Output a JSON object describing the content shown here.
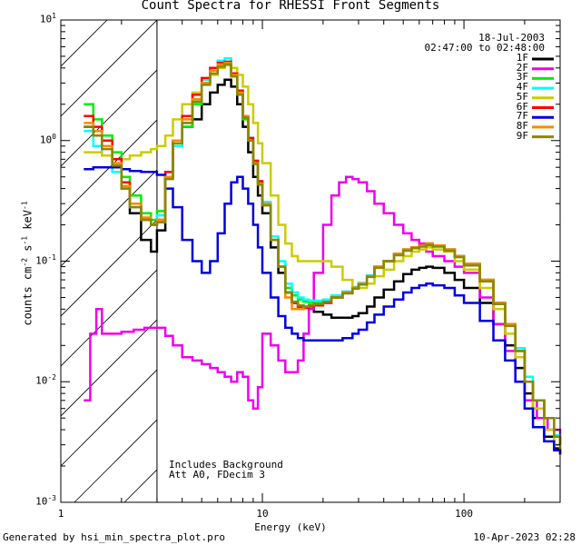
{
  "chart_data": {
    "type": "line",
    "title": "Count Spectra for RHESSI Front Segments",
    "xlabel": "Energy (keV)",
    "ylabel_parts": [
      "counts cm",
      "-2",
      " s",
      "-1",
      " keV",
      "-1"
    ],
    "xscale": "log",
    "yscale": "log",
    "xlim": [
      1,
      300
    ],
    "ylim": [
      0.001,
      10
    ],
    "x_ticks": [
      {
        "v": 1,
        "t": "1"
      },
      {
        "v": 10,
        "t": "10"
      },
      {
        "v": 100,
        "t": "100"
      }
    ],
    "y_ticks": [
      {
        "v": 0.001,
        "base": "10",
        "exp": "-3"
      },
      {
        "v": 0.01,
        "base": "10",
        "exp": "-2"
      },
      {
        "v": 0.1,
        "base": "10",
        "exp": "-1"
      },
      {
        "v": 1,
        "base": "10",
        "exp": "0"
      },
      {
        "v": 10,
        "base": "10",
        "exp": "1"
      }
    ],
    "shaded_region_x": [
      1,
      3
    ],
    "date": "18-Jul-2003",
    "time_range": "02:47:00 to 02:48:00",
    "annotations": [
      "Includes Background",
      "Att A0, FDecim 3"
    ],
    "series": [
      {
        "name": "1F",
        "color": "#000000",
        "x": [
          1.3,
          1.45,
          1.6,
          1.8,
          2.0,
          2.2,
          2.5,
          2.8,
          3.0,
          3.3,
          3.6,
          4.0,
          4.5,
          5.0,
          5.5,
          6.0,
          6.5,
          7.0,
          7.5,
          8.0,
          8.5,
          9.0,
          9.5,
          10,
          11,
          12,
          13,
          14,
          15,
          16,
          17,
          18,
          20,
          22,
          25,
          28,
          30,
          33,
          36,
          40,
          45,
          50,
          55,
          60,
          65,
          70,
          80,
          90,
          100,
          120,
          140,
          160,
          180,
          200,
          220,
          250,
          280,
          300
        ],
        "y": [
          1.3,
          1.2,
          0.9,
          0.6,
          0.4,
          0.25,
          0.15,
          0.12,
          0.18,
          0.5,
          1.0,
          1.3,
          1.5,
          2.0,
          2.5,
          2.9,
          3.2,
          2.8,
          2.0,
          1.3,
          0.8,
          0.5,
          0.35,
          0.25,
          0.13,
          0.08,
          0.055,
          0.045,
          0.042,
          0.041,
          0.04,
          0.038,
          0.036,
          0.034,
          0.034,
          0.035,
          0.037,
          0.042,
          0.05,
          0.058,
          0.068,
          0.078,
          0.085,
          0.088,
          0.09,
          0.088,
          0.08,
          0.07,
          0.06,
          0.045,
          0.03,
          0.02,
          0.013,
          0.008,
          0.005,
          0.0035,
          0.0028,
          0.0025
        ]
      },
      {
        "name": "2F",
        "color": "#ee00ee",
        "x": [
          1.3,
          1.4,
          1.5,
          1.6,
          1.8,
          2.0,
          2.3,
          2.6,
          3.0,
          3.3,
          3.6,
          4.0,
          4.5,
          5.0,
          5.5,
          6.0,
          6.5,
          7.0,
          7.5,
          8.0,
          8.5,
          9.0,
          9.5,
          10,
          11,
          12,
          13,
          14,
          15,
          16,
          17,
          18,
          20,
          22,
          24,
          26,
          28,
          30,
          33,
          36,
          40,
          45,
          50,
          55,
          60,
          65,
          70,
          80,
          90,
          100,
          120,
          140,
          160,
          180,
          200,
          230,
          260,
          300
        ],
        "y": [
          0.007,
          0.025,
          0.04,
          0.025,
          0.025,
          0.026,
          0.027,
          0.028,
          0.028,
          0.024,
          0.02,
          0.016,
          0.015,
          0.014,
          0.013,
          0.012,
          0.011,
          0.01,
          0.012,
          0.011,
          0.007,
          0.006,
          0.009,
          0.025,
          0.02,
          0.015,
          0.012,
          0.012,
          0.015,
          0.025,
          0.04,
          0.08,
          0.2,
          0.35,
          0.45,
          0.5,
          0.48,
          0.45,
          0.38,
          0.3,
          0.25,
          0.2,
          0.17,
          0.15,
          0.14,
          0.12,
          0.11,
          0.1,
          0.09,
          0.08,
          0.05,
          0.03,
          0.018,
          0.01,
          0.007,
          0.005,
          0.004,
          0.0035
        ]
      },
      {
        "name": "3F",
        "color": "#00ee00",
        "x": [
          1.3,
          1.45,
          1.6,
          1.8,
          2.0,
          2.2,
          2.5,
          2.8,
          3.0,
          3.3,
          3.6,
          4.0,
          4.5,
          5.0,
          5.5,
          6.0,
          6.5,
          7.0,
          7.5,
          8.0,
          8.5,
          9.0,
          9.5,
          10,
          11,
          12,
          13,
          14,
          15,
          16,
          17,
          18,
          20,
          22,
          25,
          28,
          30,
          33,
          36,
          40,
          45,
          50,
          55,
          60,
          65,
          70,
          80,
          90,
          100,
          120,
          140,
          160,
          180,
          200,
          220,
          250,
          280,
          300
        ],
        "y": [
          2.0,
          1.5,
          1.1,
          0.8,
          0.5,
          0.35,
          0.25,
          0.22,
          0.26,
          0.5,
          0.9,
          1.3,
          2.0,
          3.0,
          3.8,
          4.3,
          4.5,
          3.5,
          2.5,
          1.5,
          1.0,
          0.65,
          0.45,
          0.3,
          0.15,
          0.09,
          0.06,
          0.052,
          0.048,
          0.046,
          0.045,
          0.045,
          0.047,
          0.05,
          0.055,
          0.06,
          0.065,
          0.075,
          0.09,
          0.1,
          0.115,
          0.125,
          0.13,
          0.135,
          0.14,
          0.135,
          0.125,
          0.11,
          0.095,
          0.07,
          0.045,
          0.03,
          0.018,
          0.01,
          0.007,
          0.005,
          0.0035,
          0.003
        ]
      },
      {
        "name": "4F",
        "color": "#00ffff",
        "x": [
          1.3,
          1.45,
          1.6,
          1.8,
          2.0,
          2.2,
          2.5,
          2.8,
          3.0,
          3.3,
          3.6,
          4.0,
          4.5,
          5.0,
          5.5,
          6.0,
          6.5,
          7.0,
          7.5,
          8.0,
          8.5,
          9.0,
          9.5,
          10,
          11,
          12,
          13,
          14,
          15,
          16,
          17,
          18,
          20,
          22,
          25,
          28,
          30,
          33,
          36,
          40,
          45,
          50,
          55,
          60,
          65,
          70,
          80,
          90,
          100,
          120,
          140,
          160,
          180,
          200,
          220,
          250,
          280,
          300
        ],
        "y": [
          1.2,
          0.9,
          0.75,
          0.55,
          0.4,
          0.28,
          0.22,
          0.2,
          0.24,
          0.5,
          0.9,
          1.4,
          2.1,
          3.2,
          4.0,
          4.6,
          4.8,
          3.6,
          2.6,
          1.6,
          1.05,
          0.68,
          0.46,
          0.31,
          0.16,
          0.1,
          0.065,
          0.055,
          0.05,
          0.048,
          0.047,
          0.047,
          0.048,
          0.052,
          0.056,
          0.061,
          0.066,
          0.076,
          0.09,
          0.1,
          0.115,
          0.125,
          0.13,
          0.135,
          0.14,
          0.135,
          0.125,
          0.11,
          0.095,
          0.07,
          0.045,
          0.03,
          0.019,
          0.011,
          0.007,
          0.005,
          0.0036,
          0.003
        ]
      },
      {
        "name": "5F",
        "color": "#cccc00",
        "x": [
          1.3,
          1.45,
          1.6,
          1.8,
          2.0,
          2.2,
          2.5,
          2.8,
          3.0,
          3.3,
          3.6,
          4.0,
          4.5,
          5.0,
          5.5,
          6.0,
          6.5,
          7.0,
          7.5,
          8.0,
          8.5,
          9.0,
          9.5,
          10,
          11,
          12,
          13,
          14,
          15,
          16,
          17,
          18,
          20,
          22,
          25,
          28,
          30,
          33,
          36,
          40,
          45,
          50,
          55,
          60,
          65,
          70,
          80,
          90,
          100,
          120,
          140,
          160,
          180,
          200,
          220,
          250,
          280,
          300
        ],
        "y": [
          0.8,
          0.8,
          0.75,
          0.7,
          0.7,
          0.75,
          0.8,
          0.85,
          0.9,
          1.1,
          1.5,
          2.0,
          2.5,
          3.0,
          3.5,
          4.0,
          4.2,
          4.0,
          3.5,
          2.8,
          2.0,
          1.4,
          0.95,
          0.65,
          0.35,
          0.2,
          0.14,
          0.11,
          0.1,
          0.1,
          0.1,
          0.1,
          0.1,
          0.09,
          0.07,
          0.06,
          0.06,
          0.065,
          0.075,
          0.085,
          0.1,
          0.11,
          0.12,
          0.125,
          0.13,
          0.125,
          0.12,
          0.1,
          0.085,
          0.06,
          0.04,
          0.025,
          0.016,
          0.01,
          0.006,
          0.004,
          0.003,
          0.0025
        ]
      },
      {
        "name": "6F",
        "color": "#ff0000",
        "x": [
          1.3,
          1.45,
          1.6,
          1.8,
          2.0,
          2.2,
          2.5,
          2.8,
          3.0,
          3.3,
          3.6,
          4.0,
          4.5,
          5.0,
          5.5,
          6.0,
          6.5,
          7.0,
          7.5,
          8.0,
          8.5,
          9.0,
          9.5,
          10,
          11,
          12,
          13,
          14,
          15,
          16,
          17,
          18,
          20,
          22,
          25,
          28,
          30,
          33,
          36,
          40,
          45,
          50,
          55,
          60,
          65,
          70,
          80,
          90,
          100,
          120,
          140,
          160,
          180,
          200,
          220,
          250,
          280,
          300
        ],
        "y": [
          1.6,
          1.3,
          1.0,
          0.7,
          0.45,
          0.3,
          0.22,
          0.2,
          0.22,
          0.55,
          1.0,
          1.6,
          2.4,
          3.3,
          4.0,
          4.4,
          4.5,
          3.6,
          2.6,
          1.6,
          1.05,
          0.68,
          0.46,
          0.3,
          0.15,
          0.09,
          0.055,
          0.045,
          0.042,
          0.041,
          0.042,
          0.043,
          0.045,
          0.05,
          0.055,
          0.06,
          0.065,
          0.075,
          0.09,
          0.1,
          0.115,
          0.125,
          0.13,
          0.135,
          0.14,
          0.135,
          0.125,
          0.11,
          0.095,
          0.07,
          0.045,
          0.03,
          0.018,
          0.01,
          0.007,
          0.005,
          0.0035,
          0.003
        ]
      },
      {
        "name": "7F",
        "color": "#0000dd",
        "x": [
          1.3,
          1.45,
          1.6,
          1.8,
          2.0,
          2.2,
          2.5,
          2.8,
          3.0,
          3.3,
          3.6,
          4.0,
          4.5,
          5.0,
          5.5,
          6.0,
          6.5,
          7.0,
          7.5,
          8.0,
          8.5,
          9.0,
          9.5,
          10,
          11,
          12,
          13,
          14,
          15,
          16,
          17,
          18,
          20,
          22,
          25,
          28,
          30,
          33,
          36,
          40,
          45,
          50,
          55,
          60,
          65,
          70,
          80,
          90,
          100,
          120,
          140,
          160,
          180,
          200,
          220,
          250,
          280,
          300
        ],
        "y": [
          0.58,
          0.6,
          0.6,
          0.6,
          0.58,
          0.56,
          0.55,
          0.55,
          0.52,
          0.4,
          0.28,
          0.15,
          0.1,
          0.08,
          0.1,
          0.17,
          0.3,
          0.45,
          0.5,
          0.4,
          0.3,
          0.2,
          0.13,
          0.08,
          0.05,
          0.035,
          0.028,
          0.025,
          0.023,
          0.022,
          0.022,
          0.022,
          0.022,
          0.022,
          0.023,
          0.025,
          0.027,
          0.031,
          0.036,
          0.042,
          0.048,
          0.055,
          0.06,
          0.063,
          0.065,
          0.063,
          0.06,
          0.052,
          0.045,
          0.032,
          0.022,
          0.015,
          0.01,
          0.006,
          0.0042,
          0.0032,
          0.0027,
          0.0025
        ]
      },
      {
        "name": "8F",
        "color": "#ff8800",
        "x": [
          1.3,
          1.45,
          1.6,
          1.8,
          2.0,
          2.2,
          2.5,
          2.8,
          3.0,
          3.3,
          3.6,
          4.0,
          4.5,
          5.0,
          5.5,
          6.0,
          6.5,
          7.0,
          7.5,
          8.0,
          8.5,
          9.0,
          9.5,
          10,
          11,
          12,
          13,
          14,
          15,
          16,
          17,
          18,
          20,
          22,
          25,
          28,
          30,
          33,
          36,
          40,
          45,
          50,
          55,
          60,
          65,
          70,
          80,
          90,
          100,
          120,
          140,
          160,
          180,
          200,
          220,
          250,
          280,
          300
        ],
        "y": [
          1.4,
          1.2,
          0.9,
          0.65,
          0.42,
          0.3,
          0.23,
          0.2,
          0.22,
          0.5,
          1.0,
          1.5,
          2.2,
          3.0,
          3.8,
          4.3,
          4.4,
          3.5,
          2.5,
          1.6,
          1.0,
          0.65,
          0.44,
          0.3,
          0.15,
          0.09,
          0.05,
          0.04,
          0.04,
          0.042,
          0.043,
          0.044,
          0.046,
          0.05,
          0.055,
          0.06,
          0.065,
          0.075,
          0.09,
          0.1,
          0.115,
          0.125,
          0.13,
          0.135,
          0.14,
          0.135,
          0.125,
          0.11,
          0.095,
          0.07,
          0.045,
          0.03,
          0.018,
          0.01,
          0.007,
          0.005,
          0.0035,
          0.003
        ]
      },
      {
        "name": "9F",
        "color": "#888800",
        "x": [
          1.3,
          1.45,
          1.6,
          1.8,
          2.0,
          2.2,
          2.5,
          2.8,
          3.0,
          3.3,
          3.6,
          4.0,
          4.5,
          5.0,
          5.5,
          6.0,
          6.5,
          7.0,
          7.5,
          8.0,
          8.5,
          9.0,
          9.5,
          10,
          11,
          12,
          13,
          14,
          15,
          16,
          17,
          18,
          20,
          22,
          25,
          28,
          30,
          33,
          36,
          40,
          45,
          50,
          55,
          60,
          65,
          70,
          80,
          90,
          100,
          120,
          140,
          160,
          180,
          200,
          220,
          250,
          280,
          300
        ],
        "y": [
          1.3,
          1.1,
          0.85,
          0.62,
          0.4,
          0.28,
          0.22,
          0.2,
          0.21,
          0.48,
          0.95,
          1.4,
          2.1,
          2.9,
          3.6,
          4.1,
          4.3,
          3.4,
          2.4,
          1.55,
          1.0,
          0.64,
          0.43,
          0.29,
          0.15,
          0.09,
          0.055,
          0.046,
          0.043,
          0.042,
          0.043,
          0.044,
          0.046,
          0.05,
          0.054,
          0.059,
          0.064,
          0.074,
          0.088,
          0.1,
          0.112,
          0.122,
          0.128,
          0.132,
          0.136,
          0.132,
          0.122,
          0.108,
          0.092,
          0.068,
          0.044,
          0.029,
          0.018,
          0.01,
          0.007,
          0.005,
          0.0035,
          0.003
        ]
      }
    ]
  },
  "footer": {
    "left": "Generated by hsi_min_spectra_plot.pro",
    "right": "10-Apr-2023 02:28"
  }
}
